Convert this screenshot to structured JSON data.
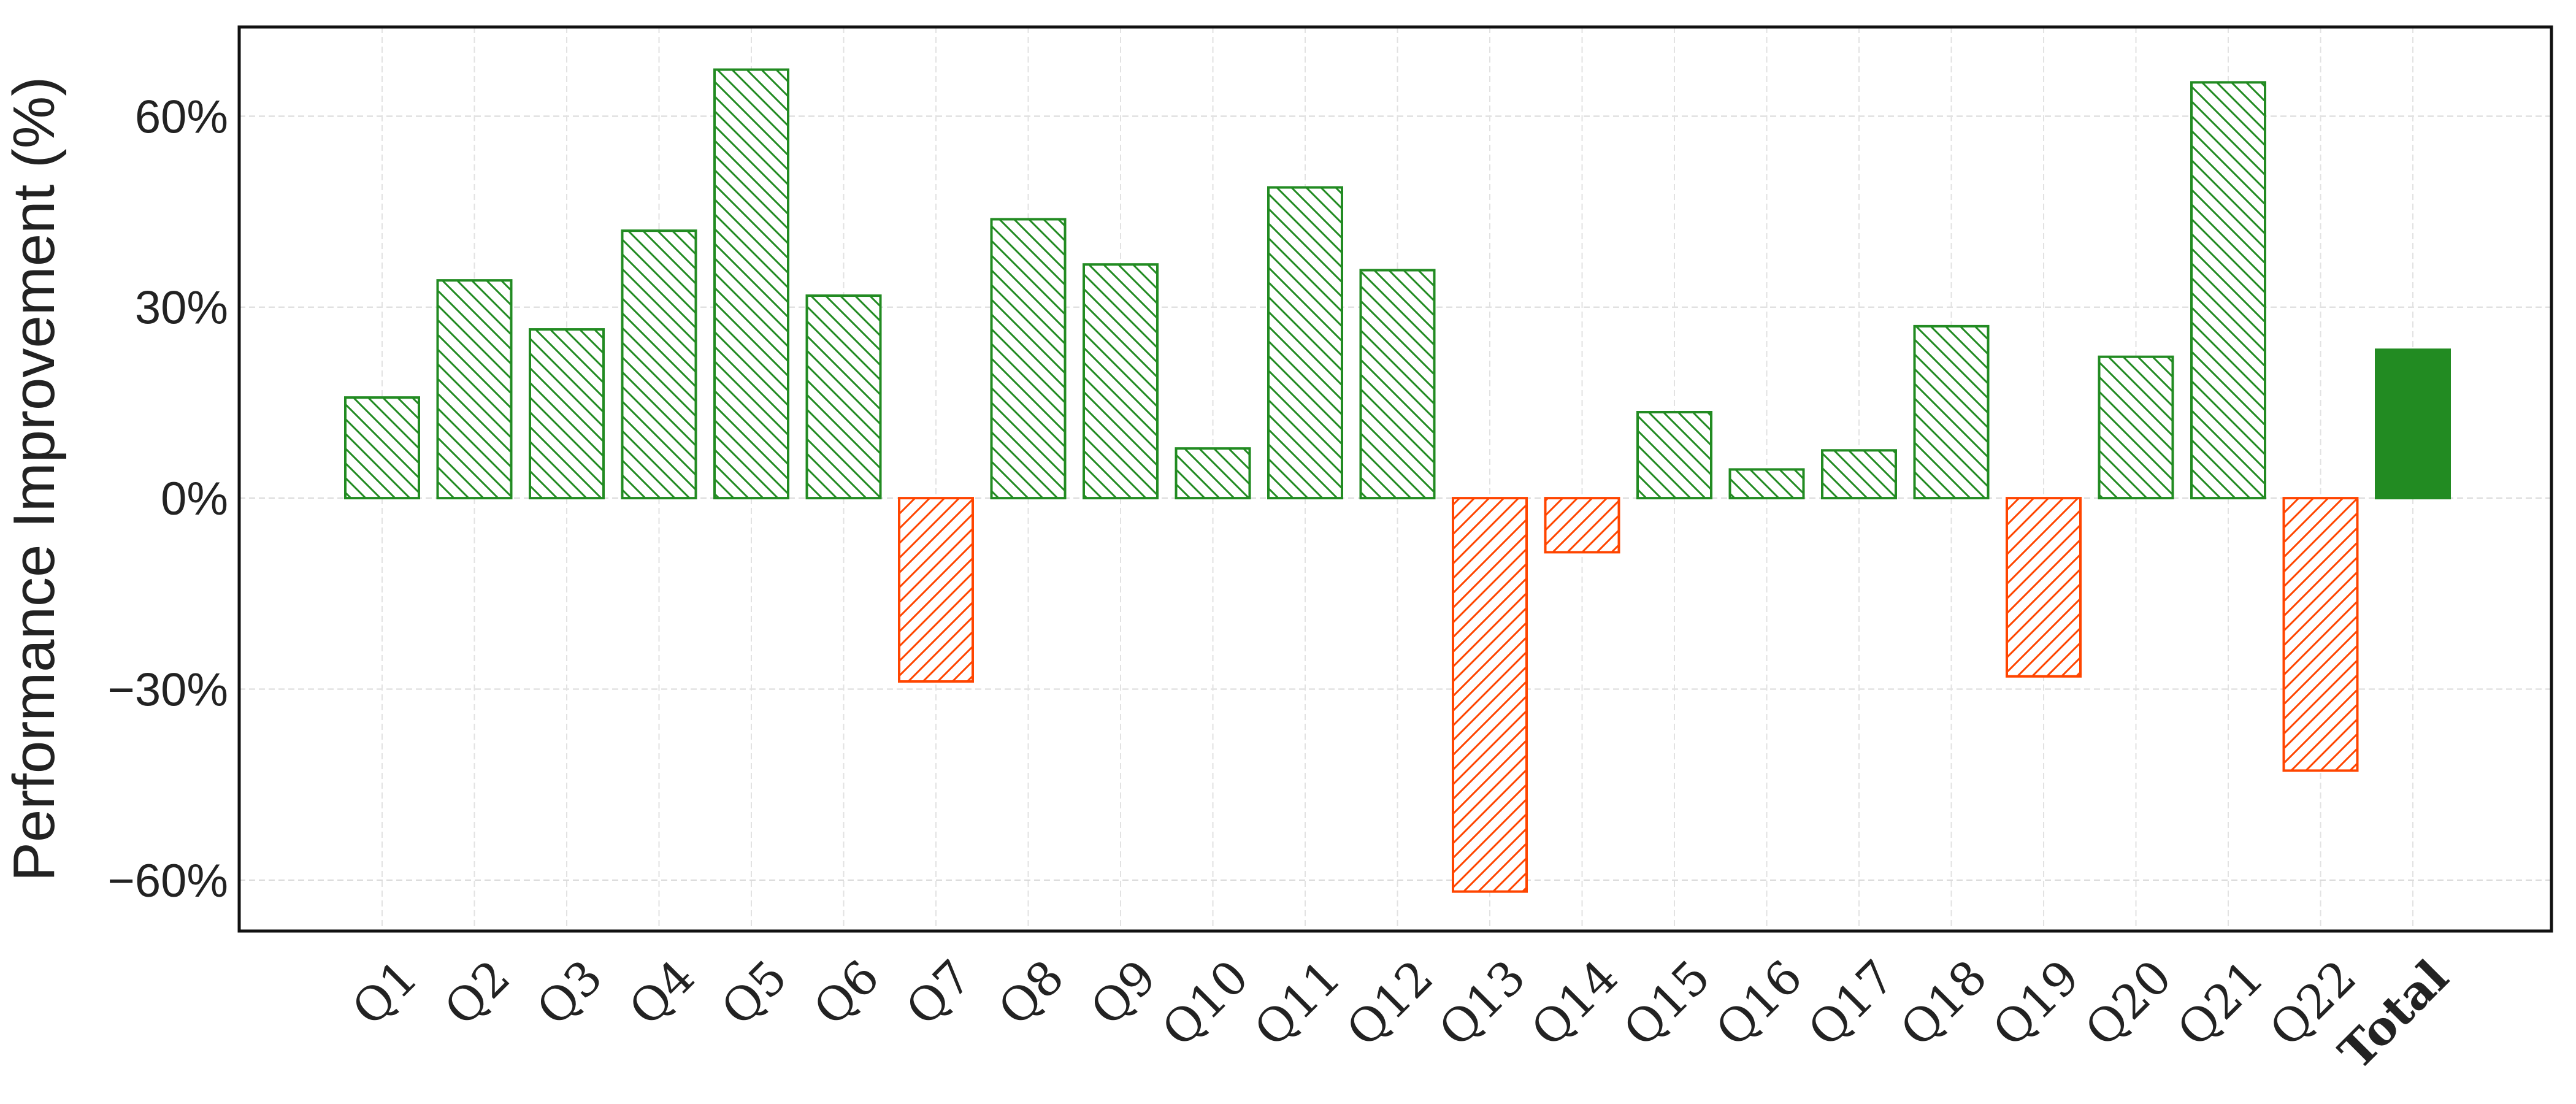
{
  "chart_data": {
    "type": "bar",
    "ylabel": "Performance Improvement (%)",
    "xlabel": "",
    "ylim": [
      -68,
      74
    ],
    "yticks": [
      -60,
      -30,
      0,
      30,
      60
    ],
    "ytick_labels": [
      "−60%",
      "−30%",
      "0%",
      "30%",
      "60%"
    ],
    "grid": true,
    "categories": [
      "Q1",
      "Q2",
      "Q3",
      "Q4",
      "Q5",
      "Q6",
      "Q7",
      "Q8",
      "Q9",
      "Q10",
      "Q11",
      "Q12",
      "Q13",
      "Q14",
      "Q15",
      "Q16",
      "Q17",
      "Q18",
      "Q19",
      "Q20",
      "Q21",
      "Q22",
      "Total"
    ],
    "values": [
      15.8,
      34.2,
      26.5,
      42.0,
      67.3,
      31.8,
      -28.8,
      43.8,
      36.7,
      7.8,
      48.8,
      35.8,
      -61.8,
      -8.5,
      13.5,
      4.5,
      7.5,
      27.0,
      -28.0,
      22.2,
      65.3,
      -42.8,
      23.3
    ],
    "colors": {
      "positive": "#228B22",
      "negative": "#FF4500",
      "total": "#228B22"
    },
    "hatch": {
      "positive": "backslash",
      "negative": "slash",
      "total": "solid"
    },
    "bold_categories": [
      "Total"
    ]
  }
}
